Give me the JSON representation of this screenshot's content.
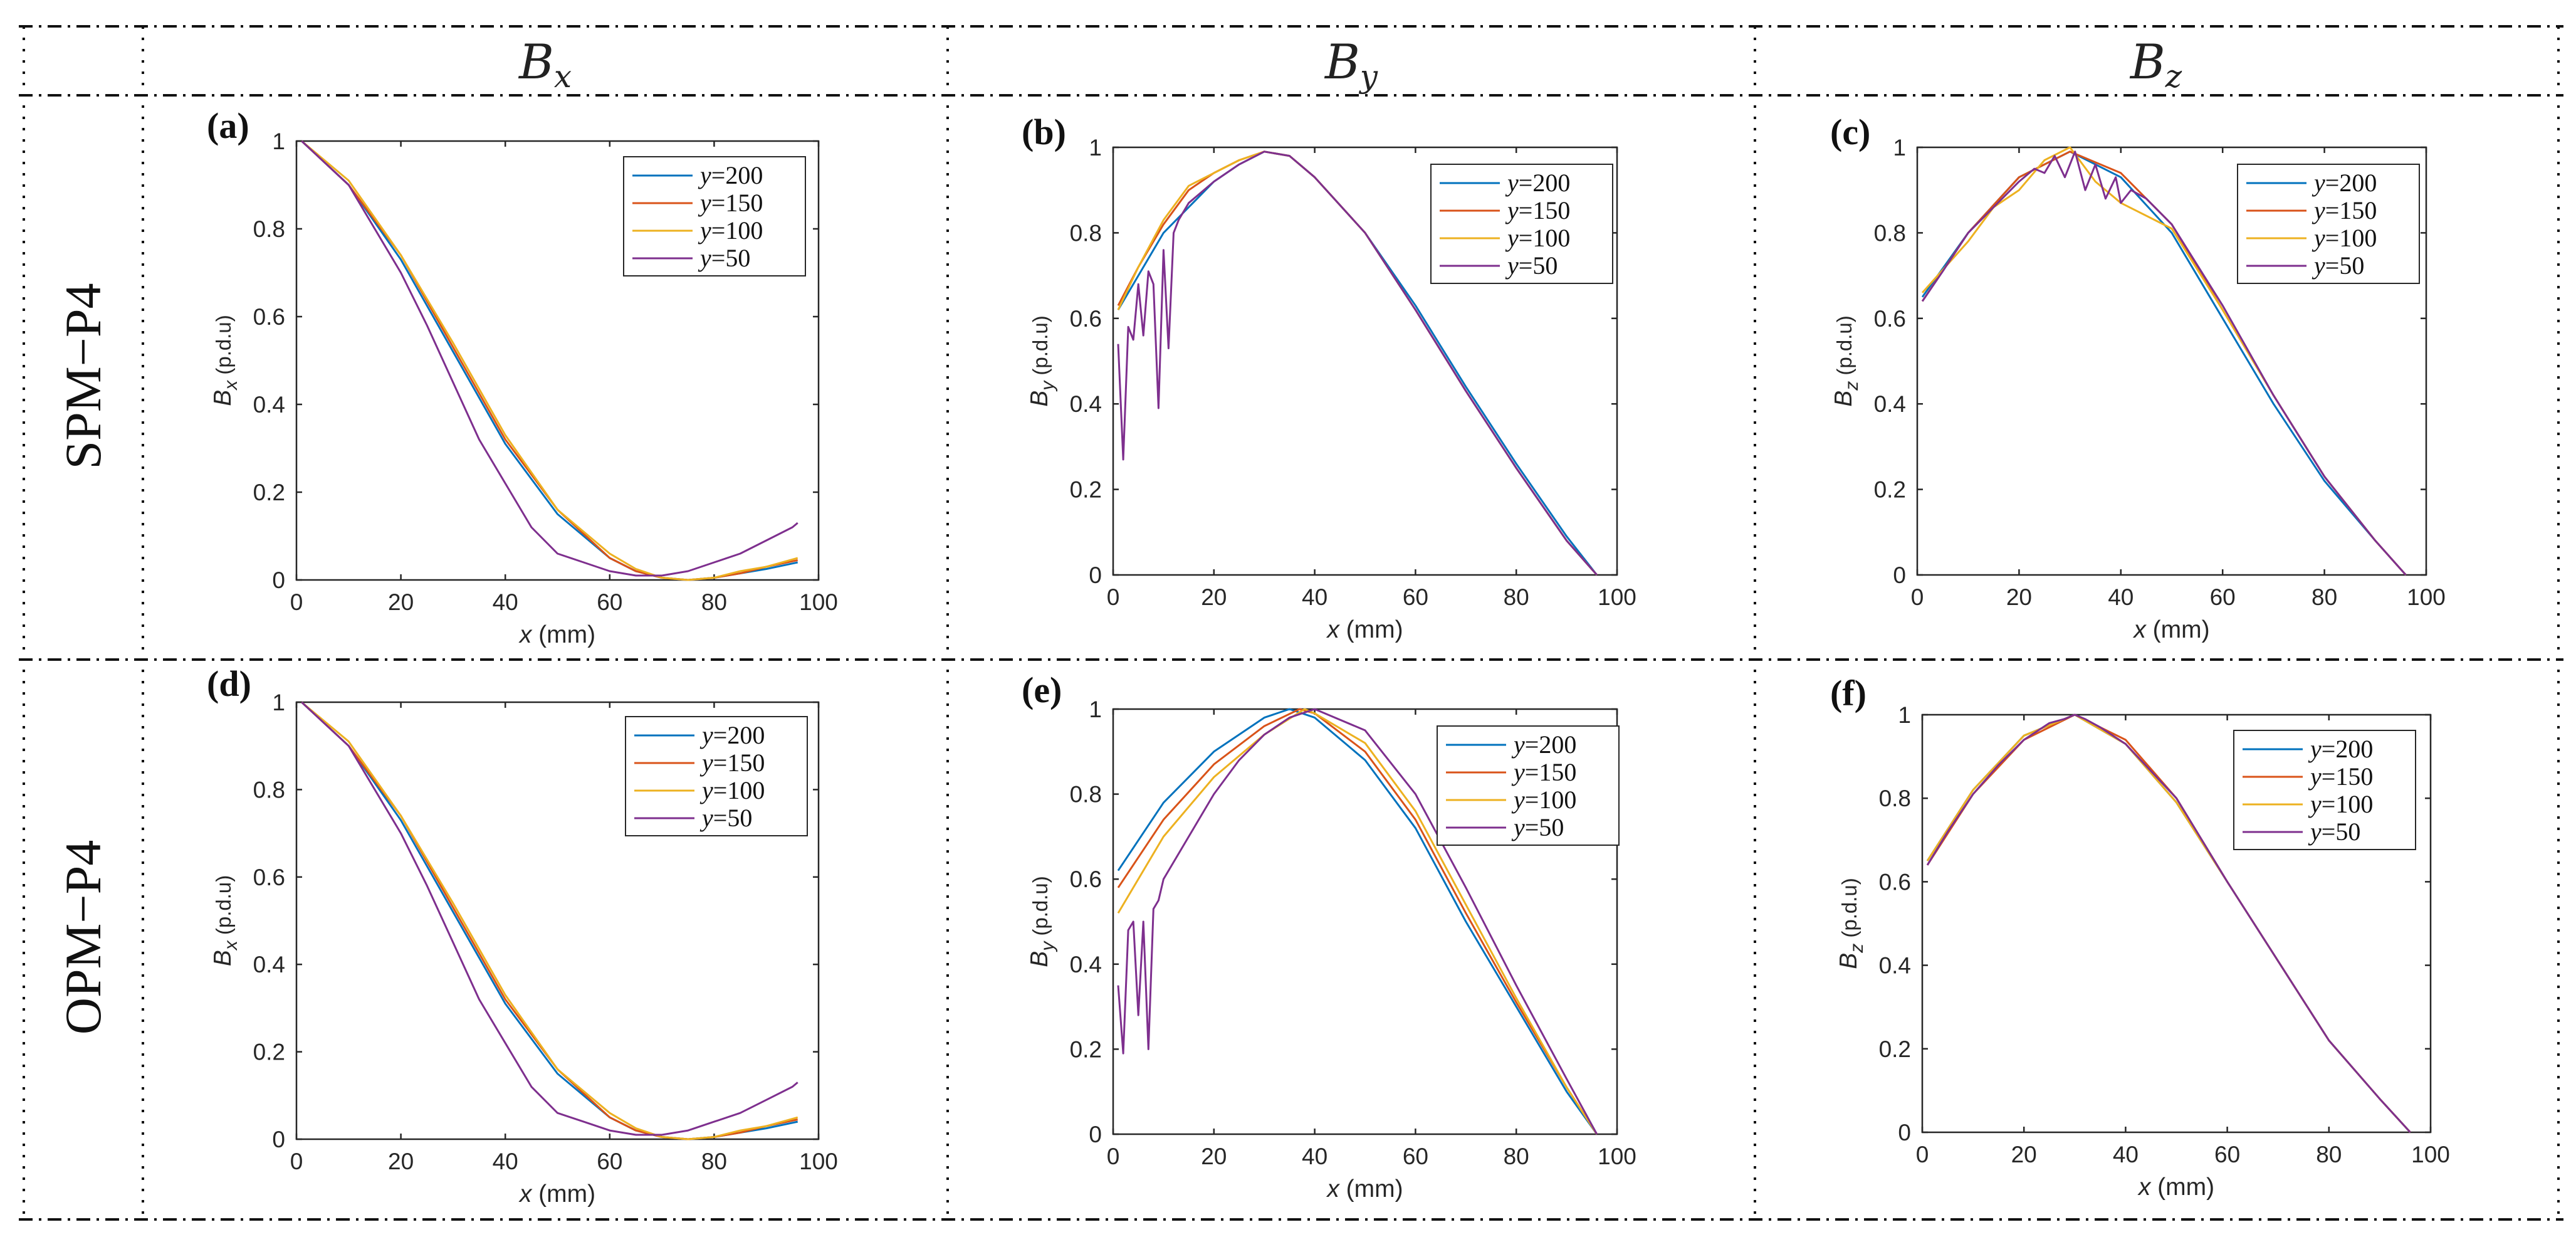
{
  "headers": {
    "col1": {
      "main": "B",
      "sub": "x"
    },
    "col2": {
      "main": "B",
      "sub": "y"
    },
    "col3": {
      "main": "B",
      "sub": "z"
    }
  },
  "rows": {
    "row1": "SPM−P4",
    "row2": "OPM−P4"
  },
  "colors": {
    "y200": "#0072BD",
    "y150": "#D95319",
    "y100": "#EDB120",
    "y50": "#7E2F8E"
  },
  "chart_data": [
    {
      "id": "a",
      "label": "(a)",
      "type": "line",
      "xlabel": "x (mm)",
      "ylabel_main": "B",
      "ylabel_sub": "x",
      "ylabel_unit": "(p.d.u)",
      "xlim": [
        0,
        100
      ],
      "ylim": [
        0,
        1
      ],
      "xticks": [
        "0",
        "20",
        "40",
        "60",
        "80",
        "100"
      ],
      "yticks": [
        "0",
        "0.2",
        "0.4",
        "0.6",
        "0.8",
        "1"
      ],
      "legend": [
        "y=200",
        "y=150",
        "y=100",
        "y=50"
      ],
      "series": [
        {
          "name": "y=200",
          "x": [
            1,
            10,
            20,
            30,
            40,
            50,
            60,
            65,
            70,
            75,
            80,
            85,
            90,
            96
          ],
          "y": [
            1,
            0.9,
            0.73,
            0.52,
            0.31,
            0.15,
            0.05,
            0.02,
            0.005,
            0.0,
            0.005,
            0.015,
            0.025,
            0.04
          ]
        },
        {
          "name": "y=150",
          "x": [
            1,
            10,
            20,
            30,
            40,
            50,
            60,
            65,
            70,
            75,
            80,
            85,
            90,
            96
          ],
          "y": [
            1,
            0.9,
            0.74,
            0.53,
            0.32,
            0.16,
            0.05,
            0.02,
            0.005,
            0.0,
            0.005,
            0.015,
            0.03,
            0.045
          ]
        },
        {
          "name": "y=100",
          "x": [
            1,
            10,
            20,
            30,
            40,
            50,
            60,
            65,
            70,
            75,
            80,
            85,
            90,
            96
          ],
          "y": [
            1,
            0.91,
            0.74,
            0.54,
            0.33,
            0.16,
            0.06,
            0.025,
            0.005,
            0.0,
            0.005,
            0.02,
            0.03,
            0.05
          ]
        },
        {
          "name": "y=50",
          "x": [
            1,
            10,
            20,
            25,
            30,
            35,
            40,
            45,
            50,
            55,
            60,
            65,
            70,
            75,
            80,
            85,
            90,
            95,
            96
          ],
          "y": [
            1,
            0.9,
            0.7,
            0.58,
            0.45,
            0.32,
            0.22,
            0.12,
            0.06,
            0.04,
            0.02,
            0.01,
            0.01,
            0.02,
            0.04,
            0.06,
            0.09,
            0.12,
            0.13
          ]
        }
      ]
    },
    {
      "id": "b",
      "label": "(b)",
      "type": "line",
      "xlabel": "x (mm)",
      "ylabel_main": "B",
      "ylabel_sub": "y",
      "ylabel_unit": "(p.d.u)",
      "xlim": [
        0,
        100
      ],
      "ylim": [
        0,
        1
      ],
      "xticks": [
        "0",
        "20",
        "40",
        "60",
        "80",
        "100"
      ],
      "yticks": [
        "0",
        "0.2",
        "0.4",
        "0.6",
        "0.8",
        "1"
      ],
      "legend": [
        "y=200",
        "y=150",
        "y=100",
        "y=50"
      ],
      "series": [
        {
          "name": "y=200",
          "x": [
            1,
            5,
            10,
            15,
            20,
            25,
            30,
            35,
            40,
            50,
            60,
            70,
            80,
            90,
            96
          ],
          "y": [
            0.62,
            0.7,
            0.8,
            0.86,
            0.92,
            0.96,
            0.99,
            0.98,
            0.93,
            0.8,
            0.63,
            0.44,
            0.26,
            0.09,
            0.0
          ]
        },
        {
          "name": "y=150",
          "x": [
            1,
            5,
            10,
            15,
            20,
            25,
            30,
            35,
            40,
            50,
            60,
            70,
            80,
            90,
            96
          ],
          "y": [
            0.63,
            0.72,
            0.82,
            0.9,
            0.94,
            0.97,
            0.99,
            0.98,
            0.93,
            0.8,
            0.62,
            0.43,
            0.25,
            0.08,
            0.0
          ]
        },
        {
          "name": "y=100",
          "x": [
            1,
            5,
            10,
            15,
            20,
            25,
            30,
            35,
            40,
            50,
            60,
            70,
            80,
            90,
            96
          ],
          "y": [
            0.62,
            0.72,
            0.83,
            0.91,
            0.94,
            0.97,
            0.99,
            0.98,
            0.93,
            0.8,
            0.62,
            0.43,
            0.25,
            0.08,
            0.0
          ]
        },
        {
          "name": "y=50",
          "x": [
            1,
            2,
            3,
            4,
            5,
            6,
            7,
            8,
            9,
            10,
            11,
            12,
            13,
            15,
            20,
            25,
            30,
            35,
            40,
            50,
            60,
            70,
            80,
            90,
            96
          ],
          "y": [
            0.54,
            0.27,
            0.58,
            0.55,
            0.68,
            0.56,
            0.71,
            0.68,
            0.39,
            0.76,
            0.53,
            0.8,
            0.83,
            0.87,
            0.92,
            0.96,
            0.99,
            0.98,
            0.93,
            0.8,
            0.62,
            0.43,
            0.25,
            0.08,
            0.0
          ]
        }
      ]
    },
    {
      "id": "c",
      "label": "(c)",
      "type": "line",
      "xlabel": "x (mm)",
      "ylabel_main": "B",
      "ylabel_sub": "z",
      "ylabel_unit": "(p.d.u)",
      "xlim": [
        0,
        100
      ],
      "ylim": [
        0,
        1
      ],
      "xticks": [
        "0",
        "20",
        "40",
        "60",
        "80",
        "100"
      ],
      "yticks": [
        "0",
        "0.2",
        "0.4",
        "0.6",
        "0.8",
        "1"
      ],
      "legend": [
        "y=200",
        "y=150",
        "y=100",
        "y=50"
      ],
      "series": [
        {
          "name": "y=200",
          "x": [
            1,
            10,
            20,
            30,
            40,
            50,
            60,
            70,
            80,
            90,
            96
          ],
          "y": [
            0.65,
            0.8,
            0.93,
            0.99,
            0.93,
            0.8,
            0.6,
            0.4,
            0.22,
            0.08,
            0.0
          ]
        },
        {
          "name": "y=150",
          "x": [
            1,
            10,
            20,
            30,
            40,
            50,
            60,
            70,
            80,
            90,
            96
          ],
          "y": [
            0.64,
            0.8,
            0.93,
            0.99,
            0.94,
            0.82,
            0.62,
            0.42,
            0.23,
            0.08,
            0.0
          ]
        },
        {
          "name": "y=100",
          "x": [
            1,
            10,
            15,
            20,
            25,
            30,
            35,
            40,
            50,
            60,
            70,
            80,
            90,
            96
          ],
          "y": [
            0.66,
            0.78,
            0.86,
            0.9,
            0.97,
            1.0,
            0.92,
            0.87,
            0.81,
            0.62,
            0.42,
            0.23,
            0.08,
            0.0
          ]
        },
        {
          "name": "y=50",
          "x": [
            1,
            5,
            10,
            15,
            20,
            23,
            25,
            27,
            29,
            31,
            33,
            35,
            37,
            39,
            40,
            42,
            45,
            50,
            60,
            70,
            80,
            90,
            96
          ],
          "y": [
            0.64,
            0.71,
            0.8,
            0.86,
            0.92,
            0.95,
            0.94,
            0.98,
            0.93,
            0.99,
            0.9,
            0.96,
            0.88,
            0.93,
            0.87,
            0.9,
            0.88,
            0.82,
            0.63,
            0.42,
            0.23,
            0.08,
            0.0
          ]
        }
      ]
    },
    {
      "id": "d",
      "label": "(d)",
      "type": "line",
      "xlabel": "x (mm)",
      "ylabel_main": "B",
      "ylabel_sub": "x",
      "ylabel_unit": "(p.d.u)",
      "xlim": [
        0,
        100
      ],
      "ylim": [
        0,
        1
      ],
      "xticks": [
        "0",
        "20",
        "40",
        "60",
        "80",
        "100"
      ],
      "yticks": [
        "0",
        "0.2",
        "0.4",
        "0.6",
        "0.8",
        "1"
      ],
      "legend": [
        "y=200",
        "y=150",
        "y=100",
        "y=50"
      ],
      "series": [
        {
          "name": "y=200",
          "x": [
            1,
            10,
            20,
            30,
            40,
            50,
            60,
            65,
            70,
            75,
            80,
            85,
            90,
            96
          ],
          "y": [
            1,
            0.9,
            0.73,
            0.52,
            0.31,
            0.15,
            0.05,
            0.02,
            0.005,
            0.0,
            0.005,
            0.015,
            0.025,
            0.04
          ]
        },
        {
          "name": "y=150",
          "x": [
            1,
            10,
            20,
            30,
            40,
            50,
            60,
            65,
            70,
            75,
            80,
            85,
            90,
            96
          ],
          "y": [
            1,
            0.9,
            0.74,
            0.53,
            0.32,
            0.16,
            0.05,
            0.02,
            0.005,
            0.0,
            0.005,
            0.015,
            0.03,
            0.045
          ]
        },
        {
          "name": "y=100",
          "x": [
            1,
            10,
            20,
            30,
            40,
            50,
            60,
            65,
            70,
            75,
            80,
            85,
            90,
            96
          ],
          "y": [
            1,
            0.91,
            0.74,
            0.54,
            0.33,
            0.16,
            0.06,
            0.025,
            0.005,
            0.0,
            0.005,
            0.02,
            0.03,
            0.05
          ]
        },
        {
          "name": "y=50",
          "x": [
            1,
            10,
            20,
            25,
            30,
            35,
            40,
            45,
            50,
            55,
            60,
            65,
            70,
            75,
            80,
            85,
            90,
            95,
            96
          ],
          "y": [
            1,
            0.9,
            0.7,
            0.58,
            0.45,
            0.32,
            0.22,
            0.12,
            0.06,
            0.04,
            0.02,
            0.01,
            0.01,
            0.02,
            0.04,
            0.06,
            0.09,
            0.12,
            0.13
          ]
        }
      ]
    },
    {
      "id": "e",
      "label": "(e)",
      "type": "line",
      "xlabel": "x (mm)",
      "ylabel_main": "B",
      "ylabel_sub": "y",
      "ylabel_unit": "(p.d.u)",
      "xlim": [
        0,
        100
      ],
      "ylim": [
        0,
        1
      ],
      "xticks": [
        "0",
        "20",
        "40",
        "60",
        "80",
        "100"
      ],
      "yticks": [
        "0",
        "0.2",
        "0.4",
        "0.6",
        "0.8",
        "1"
      ],
      "legend": [
        "y=200",
        "y=150",
        "y=100",
        "y=50"
      ],
      "series": [
        {
          "name": "y=200",
          "x": [
            1,
            10,
            20,
            30,
            35,
            40,
            50,
            60,
            70,
            80,
            90,
            96
          ],
          "y": [
            0.62,
            0.78,
            0.9,
            0.98,
            1.0,
            0.98,
            0.88,
            0.72,
            0.5,
            0.3,
            0.1,
            0.0
          ]
        },
        {
          "name": "y=150",
          "x": [
            1,
            10,
            20,
            30,
            37,
            40,
            50,
            60,
            70,
            80,
            90,
            96
          ],
          "y": [
            0.58,
            0.74,
            0.87,
            0.96,
            1.0,
            0.99,
            0.9,
            0.74,
            0.52,
            0.31,
            0.11,
            0.0
          ]
        },
        {
          "name": "y=100",
          "x": [
            1,
            10,
            20,
            30,
            38,
            40,
            50,
            60,
            70,
            80,
            90,
            96
          ],
          "y": [
            0.52,
            0.7,
            0.84,
            0.94,
            1.0,
            0.99,
            0.92,
            0.76,
            0.54,
            0.32,
            0.11,
            0.0
          ]
        },
        {
          "name": "y=50",
          "x": [
            1,
            2,
            3,
            4,
            5,
            6,
            7,
            8,
            9,
            10,
            15,
            20,
            25,
            30,
            35,
            40,
            50,
            60,
            70,
            80,
            90,
            96
          ],
          "y": [
            0.35,
            0.19,
            0.48,
            0.5,
            0.28,
            0.5,
            0.2,
            0.53,
            0.55,
            0.6,
            0.7,
            0.8,
            0.88,
            0.94,
            0.98,
            1.0,
            0.95,
            0.8,
            0.58,
            0.35,
            0.13,
            0.0
          ]
        }
      ]
    },
    {
      "id": "f",
      "label": "(f)",
      "type": "line",
      "xlabel": "x (mm)",
      "ylabel_main": "B",
      "ylabel_sub": "z",
      "ylabel_unit": "(p.d.u)",
      "xlim": [
        0,
        100
      ],
      "ylim": [
        0,
        1
      ],
      "xticks": [
        "0",
        "20",
        "40",
        "60",
        "80",
        "100"
      ],
      "yticks": [
        "0",
        "0.2",
        "0.4",
        "0.6",
        "0.8",
        "1"
      ],
      "legend": [
        "y=200",
        "y=150",
        "y=100",
        "y=50"
      ],
      "series": [
        {
          "name": "y=200",
          "x": [
            1,
            10,
            20,
            30,
            40,
            50,
            60,
            70,
            80,
            90,
            96
          ],
          "y": [
            0.65,
            0.82,
            0.95,
            1.0,
            0.93,
            0.79,
            0.6,
            0.41,
            0.22,
            0.08,
            0.0
          ]
        },
        {
          "name": "y=150",
          "x": [
            1,
            10,
            20,
            30,
            40,
            50,
            60,
            70,
            80,
            90,
            96
          ],
          "y": [
            0.64,
            0.81,
            0.94,
            1.0,
            0.94,
            0.8,
            0.6,
            0.41,
            0.22,
            0.08,
            0.0
          ]
        },
        {
          "name": "y=100",
          "x": [
            1,
            10,
            20,
            30,
            40,
            50,
            60,
            70,
            80,
            90,
            96
          ],
          "y": [
            0.65,
            0.82,
            0.95,
            1.0,
            0.93,
            0.79,
            0.6,
            0.41,
            0.22,
            0.08,
            0.0
          ]
        },
        {
          "name": "y=50",
          "x": [
            1,
            5,
            10,
            15,
            20,
            25,
            28,
            30,
            32,
            35,
            40,
            50,
            60,
            70,
            80,
            90,
            96
          ],
          "y": [
            0.64,
            0.72,
            0.81,
            0.88,
            0.94,
            0.98,
            0.99,
            1.0,
            0.99,
            0.97,
            0.93,
            0.8,
            0.6,
            0.41,
            0.22,
            0.08,
            0.0
          ]
        }
      ]
    }
  ]
}
